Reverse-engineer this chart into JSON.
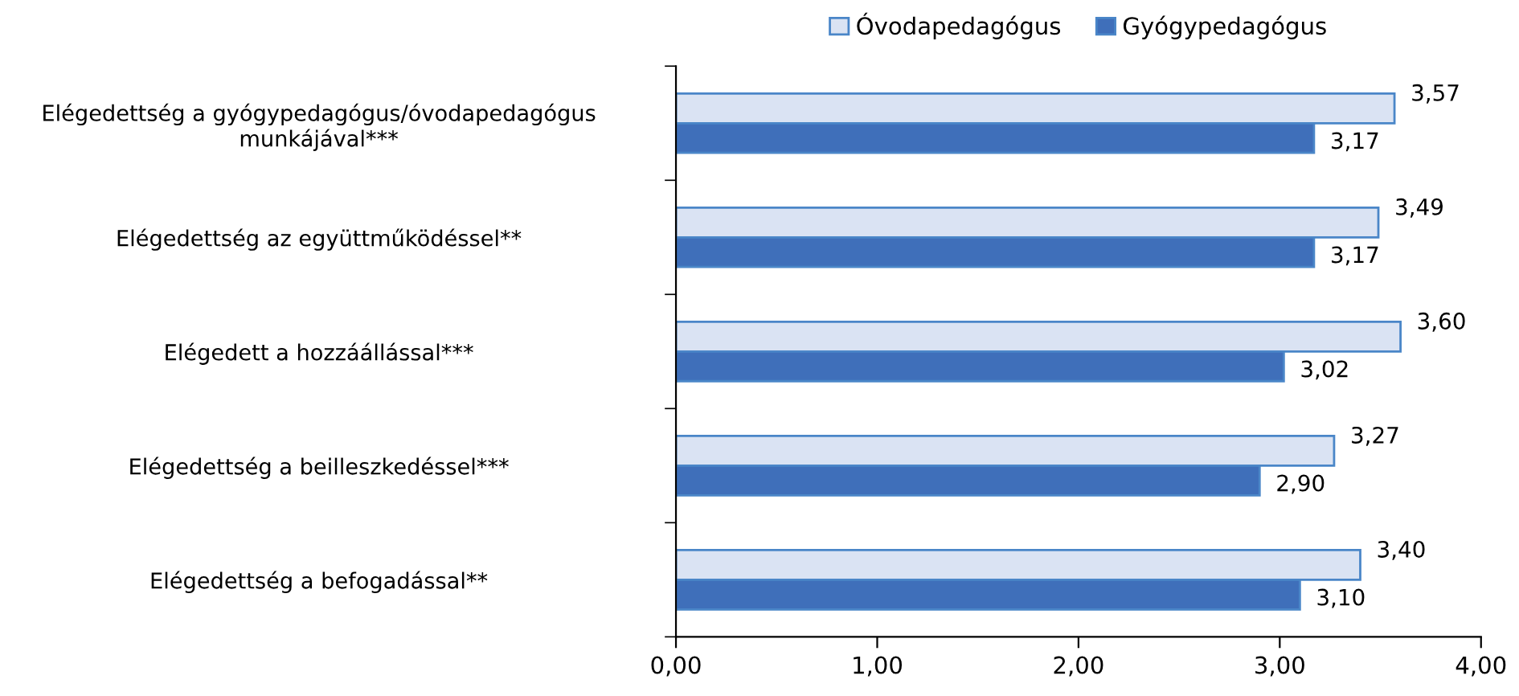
{
  "chart_data": {
    "type": "bar",
    "orientation": "horizontal",
    "categories": [
      "Elégedettség a gyógypedagógus/óvodapedagógus\nmunkájával***",
      "Elégedettség az együttműködéssel**",
      "Elégedett a hozzáállással***",
      "Elégedettség a beilleszkedéssel***",
      "Elégedettség a befogadással**"
    ],
    "series": [
      {
        "name": "Óvodapedagógus",
        "color": "#dae3f3",
        "values": [
          3.57,
          3.49,
          3.6,
          3.27,
          3.4
        ],
        "value_labels": [
          "3,57",
          "3,49",
          "3,60",
          "3,27",
          "3,40"
        ]
      },
      {
        "name": "Gyógypedagógus",
        "color": "#3f6fba",
        "values": [
          3.17,
          3.17,
          3.02,
          2.9,
          3.1
        ],
        "value_labels": [
          "3,17",
          "3,17",
          "3,02",
          "2,90",
          "3,10"
        ]
      }
    ],
    "xlim": [
      0,
      4
    ],
    "xticks": [
      {
        "value": 0,
        "label": "0,00"
      },
      {
        "value": 1,
        "label": "1,00"
      },
      {
        "value": 2,
        "label": "2,00"
      },
      {
        "value": 3,
        "label": "3,00"
      },
      {
        "value": 4,
        "label": "4,00"
      }
    ],
    "legend": "top",
    "grid": false
  }
}
